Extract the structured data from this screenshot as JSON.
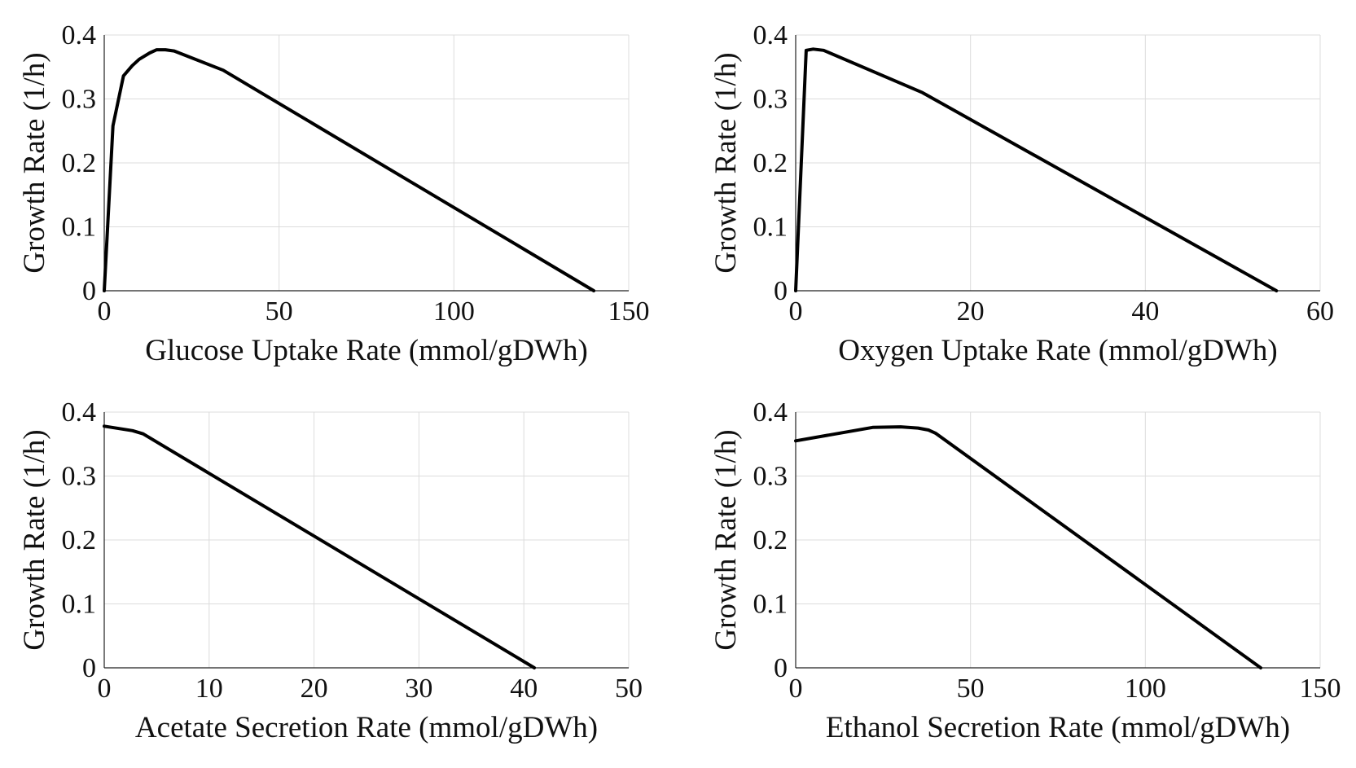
{
  "figure": {
    "chart_data": [
      {
        "type": "line",
        "xlabel": "Glucose Uptake Rate (mmol/gDWh)",
        "ylabel": "Growth Rate (1/h)",
        "xlim": [
          0,
          150
        ],
        "ylim": [
          0,
          0.4
        ],
        "xticks": [
          0,
          50,
          100,
          150
        ],
        "xtick_labels": [
          "0",
          "50",
          "100",
          "150"
        ],
        "yticks": [
          0,
          0.1,
          0.2,
          0.3,
          0.4
        ],
        "ytick_labels": [
          "0",
          "0.1",
          "0.2",
          "0.3",
          "0.4"
        ],
        "grid": true,
        "line_color": "#000000",
        "x": [
          0,
          2.5,
          5.5,
          8,
          10,
          13,
          15,
          17.5,
          20,
          34,
          140
        ],
        "y": [
          0,
          0.258,
          0.336,
          0.352,
          0.362,
          0.372,
          0.377,
          0.377,
          0.375,
          0.345,
          0
        ]
      },
      {
        "type": "line",
        "xlabel": "Oxygen Uptake Rate (mmol/gDWh)",
        "ylabel": "Growth Rate (1/h)",
        "xlim": [
          0,
          60
        ],
        "ylim": [
          0,
          0.4
        ],
        "xticks": [
          0,
          20,
          40,
          60
        ],
        "xtick_labels": [
          "0",
          "20",
          "40",
          "60"
        ],
        "yticks": [
          0,
          0.1,
          0.2,
          0.3,
          0.4
        ],
        "ytick_labels": [
          "0",
          "0.1",
          "0.2",
          "0.3",
          "0.4"
        ],
        "grid": true,
        "line_color": "#000000",
        "x": [
          0,
          1.2,
          2,
          3.2,
          14.5,
          55
        ],
        "y": [
          0,
          0.376,
          0.378,
          0.376,
          0.31,
          0
        ]
      },
      {
        "type": "line",
        "xlabel": "Acetate Secretion Rate (mmol/gDWh)",
        "ylabel": "Growth Rate (1/h)",
        "xlim": [
          0,
          50
        ],
        "ylim": [
          0,
          0.4
        ],
        "xticks": [
          0,
          10,
          20,
          30,
          40,
          50
        ],
        "xtick_labels": [
          "0",
          "10",
          "20",
          "30",
          "40",
          "50"
        ],
        "yticks": [
          0,
          0.1,
          0.2,
          0.3,
          0.4
        ],
        "ytick_labels": [
          "0",
          "0.1",
          "0.2",
          "0.3",
          "0.4"
        ],
        "grid": true,
        "line_color": "#000000",
        "x": [
          0,
          2.7,
          3.7,
          41
        ],
        "y": [
          0.378,
          0.371,
          0.366,
          0
        ]
      },
      {
        "type": "line",
        "xlabel": "Ethanol Secretion Rate (mmol/gDWh)",
        "ylabel": "Growth Rate (1/h)",
        "xlim": [
          0,
          150
        ],
        "ylim": [
          0,
          0.4
        ],
        "xticks": [
          0,
          50,
          100,
          150
        ],
        "xtick_labels": [
          "0",
          "50",
          "100",
          "150"
        ],
        "yticks": [
          0,
          0.1,
          0.2,
          0.3,
          0.4
        ],
        "ytick_labels": [
          "0",
          "0.1",
          "0.2",
          "0.3",
          "0.4"
        ],
        "grid": true,
        "line_color": "#000000",
        "x": [
          0,
          22,
          30,
          35,
          38,
          40,
          133
        ],
        "y": [
          0.355,
          0.376,
          0.377,
          0.375,
          0.372,
          0.367,
          0
        ]
      }
    ]
  }
}
